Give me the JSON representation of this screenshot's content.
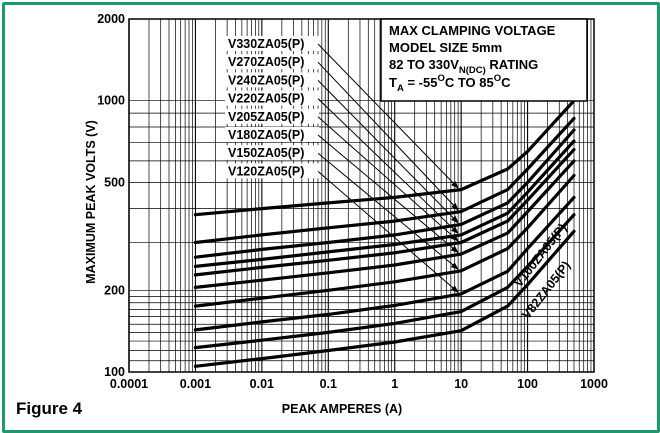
{
  "figure_label": "Figure 4",
  "chart_data": {
    "type": "line",
    "xlabel": "PEAK AMPERES (A)",
    "ylabel": "MAXIMUM PEAK VOLTS (V)",
    "xscale": "log",
    "yscale": "log",
    "xlim": [
      0.0001,
      1000
    ],
    "ylim": [
      100,
      2000
    ],
    "grid": true,
    "x_ticks": [
      "0.0001",
      "0.001",
      "0.01",
      "0.1",
      "1",
      "10",
      "100",
      "1000"
    ],
    "y_ticks": [
      {
        "value": 100,
        "label": "100"
      },
      {
        "value": 200,
        "label": "200"
      },
      {
        "value": 500,
        "label": "500"
      },
      {
        "value": 1000,
        "label": "1000"
      },
      {
        "value": 2000,
        "label": "2000"
      }
    ],
    "annotation": {
      "line1": "MAX CLAMPING VOLTAGE",
      "line2": "MODEL SIZE 5mm",
      "line3_prefix": "82 TO 330V",
      "line3_sub": "N(DC)",
      "line3_suffix": " RATING",
      "line4_a": "T",
      "line4_a_sub": "A",
      "line4_b": " = -55",
      "line4_sup1": "O",
      "line4_c": "C TO 85",
      "line4_sup2": "O",
      "line4_d": "C"
    },
    "x": [
      0.001,
      0.01,
      0.1,
      1,
      10,
      50,
      100,
      500
    ],
    "series": [
      {
        "name": "V330ZA05(P)",
        "values": [
          380,
          400,
          420,
          440,
          470,
          560,
          650,
          1000
        ]
      },
      {
        "name": "V270ZA05(P)",
        "values": [
          300,
          320,
          340,
          360,
          390,
          470,
          560,
          860
        ]
      },
      {
        "name": "V240ZA05(P)",
        "values": [
          265,
          283,
          300,
          320,
          350,
          420,
          500,
          780
        ]
      },
      {
        "name": "V220ZA05(P)",
        "values": [
          245,
          260,
          277,
          295,
          320,
          385,
          460,
          710
        ]
      },
      {
        "name": "V205ZA05(P)",
        "values": [
          228,
          243,
          258,
          275,
          300,
          360,
          430,
          660
        ]
      },
      {
        "name": "V180ZA05(P)",
        "values": [
          205,
          218,
          232,
          248,
          272,
          325,
          390,
          600
        ]
      },
      {
        "name": "V150ZA05(P)",
        "values": [
          175,
          187,
          200,
          215,
          236,
          285,
          340,
          530
        ]
      },
      {
        "name": "V120ZA05(P)",
        "values": [
          143,
          153,
          163,
          176,
          194,
          235,
          285,
          440
        ]
      },
      {
        "name": "V100ZA05(P)",
        "values": [
          123,
          131,
          140,
          151,
          167,
          205,
          245,
          380
        ]
      },
      {
        "name": "V82ZA05(P)",
        "values": [
          105,
          112,
          120,
          129,
          142,
          175,
          210,
          330
        ]
      }
    ]
  }
}
